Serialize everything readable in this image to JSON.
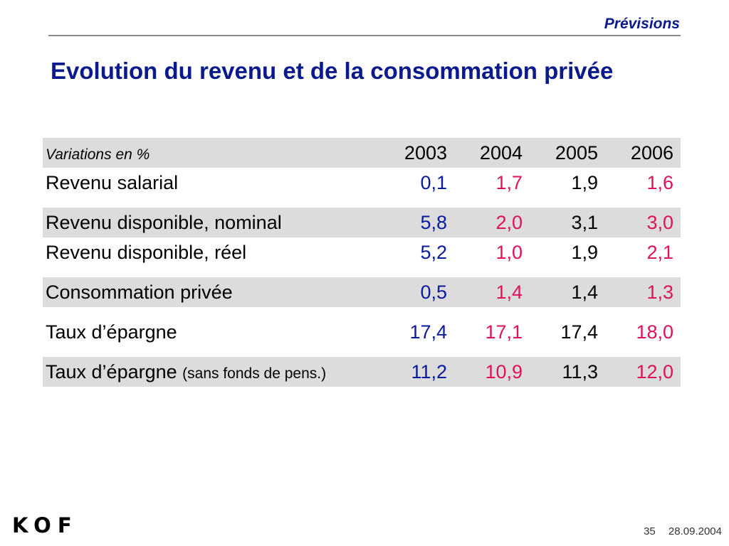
{
  "header": {
    "section": "Prévisions",
    "title": "Evolution du revenu et de la consommation privée"
  },
  "table": {
    "units_label": "Variations en %",
    "years": [
      "2003",
      "2004",
      "2005",
      "2006"
    ],
    "rows": [
      {
        "label": "Revenu salarial",
        "suffix": "",
        "values": [
          "0,1",
          "1,7",
          "1,9",
          "1,6"
        ]
      },
      {
        "label": "Revenu disponible, nominal",
        "suffix": "",
        "values": [
          "5,8",
          "2,0",
          "3,1",
          "3,0"
        ]
      },
      {
        "label": "Revenu disponible, réel",
        "suffix": "",
        "values": [
          "5,2",
          "1,0",
          "1,9",
          "2,1"
        ]
      },
      {
        "label": "Consommation privée",
        "suffix": "",
        "values": [
          "0,5",
          "1,4",
          "1,4",
          "1,3"
        ]
      },
      {
        "label": "Taux d’épargne",
        "suffix": "",
        "values": [
          "17,4",
          "17,1",
          "17,4",
          "18,0"
        ]
      },
      {
        "label": "Taux d’épargne",
        "suffix": "(sans fonds de pens.)",
        "values": [
          "11,2",
          "10,9",
          "11,3",
          "12,0"
        ]
      }
    ],
    "value_colors": [
      "#0a1a9c",
      "#e0105a",
      "#000000",
      "#e0105a"
    ]
  },
  "logo": "KOF",
  "footer": {
    "page_number": "35",
    "date": "28.09.2004"
  }
}
